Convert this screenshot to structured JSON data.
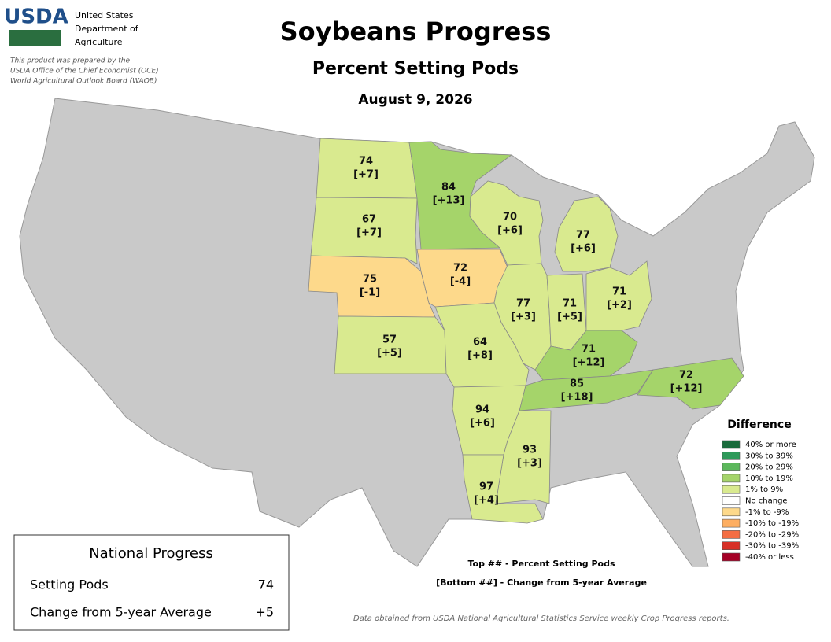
{
  "header": {
    "logo": "USDA",
    "agency": [
      "United States",
      "Department of",
      "Agriculture"
    ],
    "disclaimer": [
      "This product was prepared by the",
      "USDA Office of the Chief Economist (OCE)",
      "World Agricultural Outlook Board (WAOB)"
    ]
  },
  "title": "Soybeans Progress",
  "subtitle": "Percent Setting Pods",
  "date": "August 9, 2026",
  "states": [
    {
      "value": 74,
      "change": 7,
      "change_label": "[+7]",
      "color": "#d9ea8f"
    },
    {
      "value": 67,
      "change": 7,
      "change_label": "[+7]",
      "color": "#d9ea8f"
    },
    {
      "value": 75,
      "change": -1,
      "change_label": "[-1]",
      "color": "#fdd98b"
    },
    {
      "value": 57,
      "change": 5,
      "change_label": "[+5]",
      "color": "#d9ea8f"
    },
    {
      "value": 84,
      "change": 13,
      "change_label": "[+13]",
      "color": "#a5d46a"
    },
    {
      "value": 72,
      "change": -4,
      "change_label": "[-4]",
      "color": "#fdd98b"
    },
    {
      "value": 70,
      "change": 6,
      "change_label": "[+6]",
      "color": "#d9ea8f"
    },
    {
      "value": 77,
      "change": 3,
      "change_label": "[+3]",
      "color": "#d9ea8f"
    },
    {
      "value": 64,
      "change": 8,
      "change_label": "[+8]",
      "color": "#d9ea8f"
    },
    {
      "value": 71,
      "change": 5,
      "change_label": "[+5]",
      "color": "#d9ea8f"
    },
    {
      "value": 77,
      "change": 6,
      "change_label": "[+6]",
      "color": "#d9ea8f"
    },
    {
      "value": 71,
      "change": 2,
      "change_label": "[+2]",
      "color": "#d9ea8f"
    },
    {
      "value": 71,
      "change": 12,
      "change_label": "[+12]",
      "color": "#a5d46a"
    },
    {
      "value": 85,
      "change": 18,
      "change_label": "[+18]",
      "color": "#a5d46a"
    },
    {
      "value": 72,
      "change": 12,
      "change_label": "[+12]",
      "color": "#a5d46a"
    },
    {
      "value": 94,
      "change": 6,
      "change_label": "[+6]",
      "color": "#d9ea8f"
    },
    {
      "value": 93,
      "change": 3,
      "change_label": "[+3]",
      "color": "#d9ea8f"
    },
    {
      "value": 97,
      "change": 4,
      "change_label": "[+4]",
      "color": "#d9ea8f"
    }
  ],
  "legend": {
    "title": "Difference",
    "items": [
      {
        "label": "40% or more",
        "color": "#1a6b3c"
      },
      {
        "label": "30% to 39%",
        "color": "#2e9a5a"
      },
      {
        "label": "20% to 29%",
        "color": "#5cb85c"
      },
      {
        "label": "10% to 19%",
        "color": "#a5d46a"
      },
      {
        "label": "1% to 9%",
        "color": "#d9ea8f"
      },
      {
        "label": "No change",
        "color": "#ffffff"
      },
      {
        "label": "-1% to -9%",
        "color": "#fdd98b"
      },
      {
        "label": "-10% to -19%",
        "color": "#fdae61"
      },
      {
        "label": "-20% to -29%",
        "color": "#f46d43"
      },
      {
        "label": "-30% to -39%",
        "color": "#d73027"
      },
      {
        "label": "-40% or less",
        "color": "#a50026"
      }
    ]
  },
  "national": {
    "title": "National Progress",
    "rows": [
      {
        "label": "Setting Pods",
        "value": "74"
      },
      {
        "label": "Change from 5-year Average",
        "value": "+5"
      }
    ]
  },
  "notes": [
    "Top ## - Percent Setting Pods",
    "[Bottom ##] - Change from 5-year Average"
  ],
  "source": "Data obtained from USDA National Agricultural Statistics Service weekly Crop Progress reports."
}
